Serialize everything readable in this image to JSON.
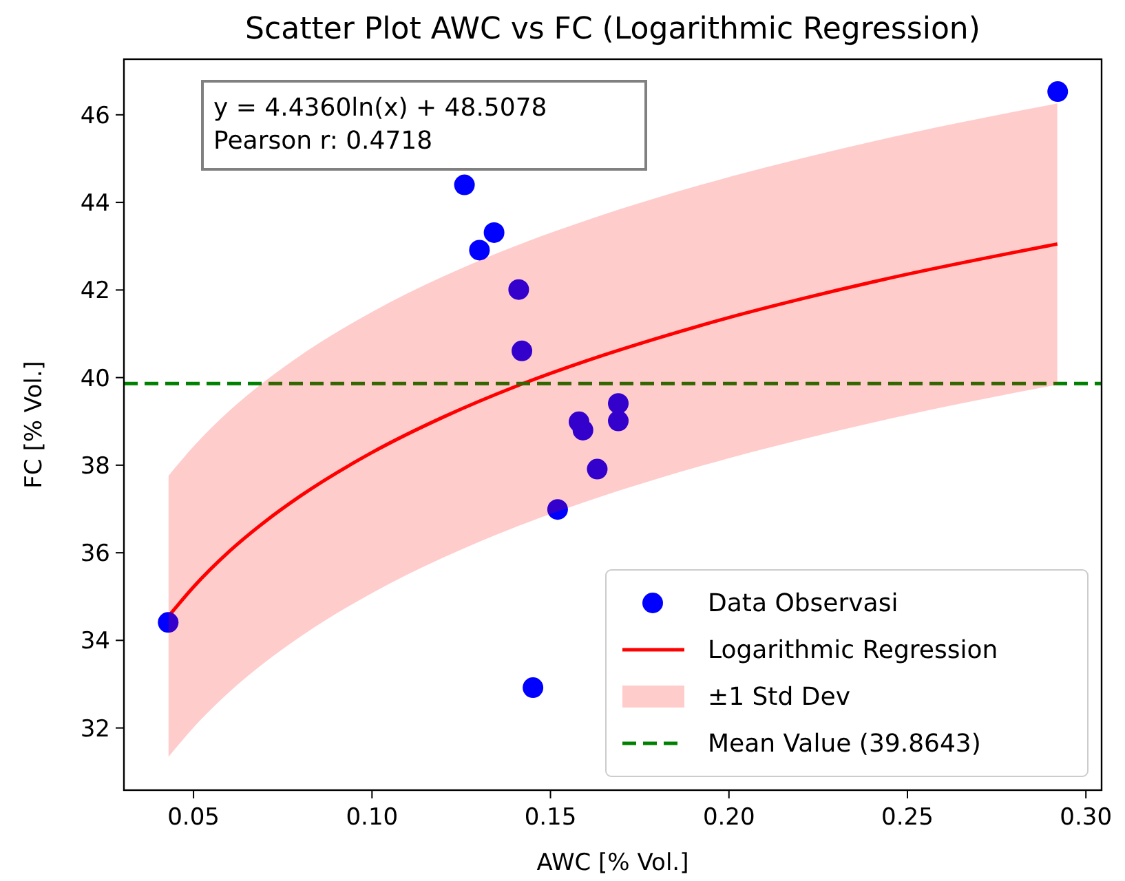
{
  "chart_data": {
    "type": "scatter",
    "title": "Scatter Plot AWC vs FC (Logarithmic Regression)",
    "xlabel": "AWC [% Vol.]",
    "ylabel": "FC [% Vol.]",
    "xlim": [
      0.0305,
      0.3044
    ],
    "xticks": [
      {
        "value": 0.05,
        "label": "0.05"
      },
      {
        "value": 0.1,
        "label": "0.10"
      },
      {
        "value": 0.15,
        "label": "0.15"
      },
      {
        "value": 0.2,
        "label": "0.20"
      },
      {
        "value": 0.25,
        "label": "0.25"
      },
      {
        "value": 0.3,
        "label": "0.30"
      }
    ],
    "ylim": [
      30.58,
      47.27
    ],
    "yticks": [
      32,
      34,
      36,
      38,
      40,
      42,
      44,
      46
    ],
    "grid": false,
    "legend": "bottom right",
    "annotations": [
      "y = 4.4360ln(x) + 48.5078\nPearson r: 0.4718",
      "±1 Std Dev"
    ],
    "ref_lines": [
      {
        "axis": "y",
        "value": 39.8643,
        "label": "Mean Value (39.8643)",
        "color": "#008000",
        "line_style": "dashed"
      }
    ],
    "series": [
      {
        "name": "Data Observasi",
        "color": "#0000ff",
        "marker": "circle",
        "x": [
          0.0429,
          0.1259,
          0.1342,
          0.1301,
          0.1411,
          0.142,
          0.169,
          0.169,
          0.158,
          0.1591,
          0.1631,
          0.152,
          0.1451,
          0.2921
        ],
        "values": [
          34.41,
          44.4,
          43.31,
          42.91,
          42.01,
          40.61,
          39.41,
          39.01,
          38.99,
          38.8,
          37.91,
          36.99,
          32.92,
          46.53
        ]
      },
      {
        "type": "line",
        "name": "Logarithmic Regression",
        "color": "#ff0000",
        "line_style": "solid",
        "x": [
          0.043,
          0.05,
          0.06,
          0.07,
          0.08,
          0.1,
          0.12,
          0.14,
          0.16,
          0.18,
          0.2,
          0.22,
          0.25,
          0.28,
          0.292
        ],
        "values": [
          34.55,
          35.22,
          36.03,
          36.71,
          37.3,
          38.29,
          39.1,
          39.79,
          40.38,
          40.9,
          41.37,
          41.79,
          42.36,
          42.86,
          43.05
        ],
        "lower": [
          31.34,
          32.01,
          32.82,
          33.5,
          34.09,
          35.08,
          35.89,
          36.58,
          37.17,
          37.69,
          38.16,
          38.58,
          39.15,
          39.65,
          39.84
        ],
        "upper": [
          37.76,
          38.43,
          39.24,
          39.92,
          40.51,
          41.5,
          42.31,
          43,
          43.59,
          44.11,
          44.58,
          45,
          45.57,
          46.07,
          46.26
        ]
      }
    ]
  }
}
